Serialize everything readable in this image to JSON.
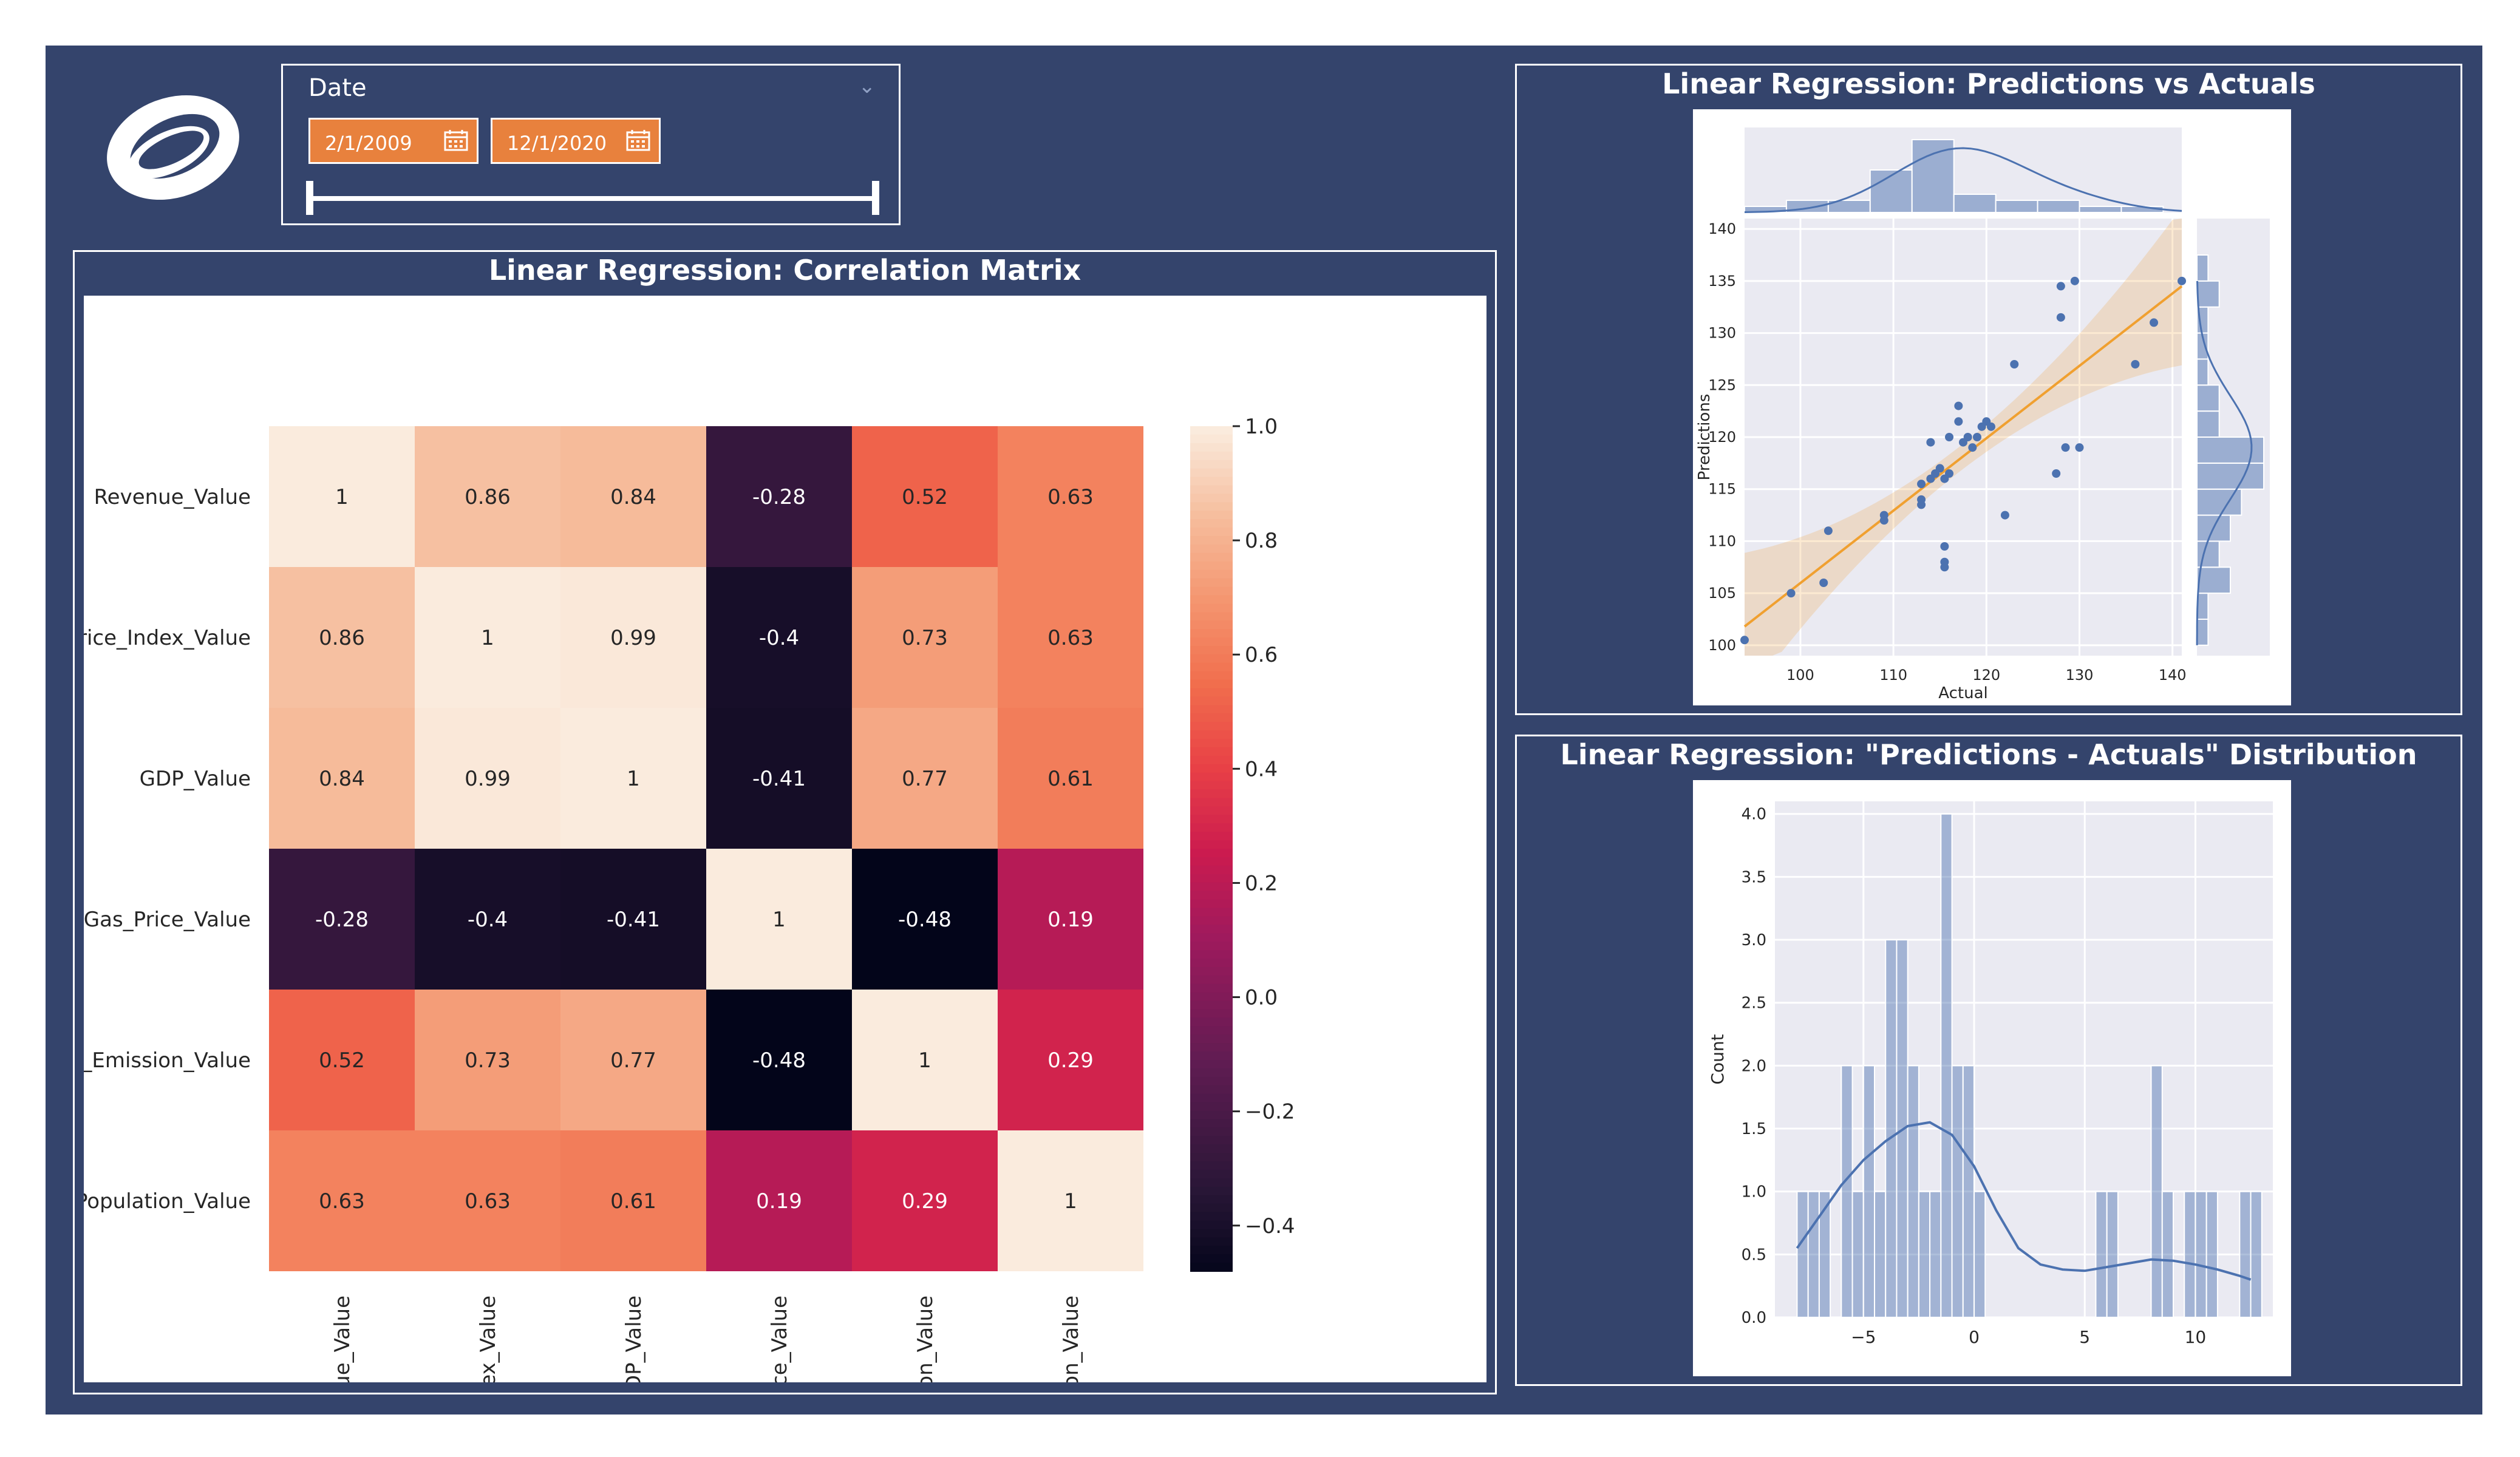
{
  "slicer": {
    "title": "Date",
    "start_date": "2/1/2009",
    "end_date": "12/1/2020"
  },
  "panels": {
    "correlation": {
      "title": "Linear Regression: Correlation Matrix"
    },
    "predictions": {
      "title": "Linear Regression: Predictions vs Actuals"
    },
    "distribution": {
      "title": "Linear Regression: \"Predictions - Actuals\" Distribution"
    }
  },
  "colors": {
    "background": "#34446c",
    "accent": "#e8813d",
    "seaborn_blue": "#4c72b0",
    "regression_line": "#f0a030",
    "seaborn_grid_bg": "#eaeaf2"
  },
  "chart_data": [
    {
      "type": "heatmap",
      "title": "",
      "row_labels": [
        "Revenue_Value",
        "rice_Index_Value",
        "GDP_Value",
        "Gas_Price_Value",
        "_Emission_Value",
        "Population_Value"
      ],
      "col_labels": [
        "nue_Value",
        "dex_Value",
        "GDP_Value",
        "rice_Value",
        "sion_Value",
        "ation_Value"
      ],
      "values": [
        [
          1,
          0.86,
          0.84,
          -0.28,
          0.52,
          0.63
        ],
        [
          0.86,
          1,
          0.99,
          -0.4,
          0.73,
          0.63
        ],
        [
          0.84,
          0.99,
          1,
          -0.41,
          0.77,
          0.61
        ],
        [
          -0.28,
          -0.4,
          -0.41,
          1,
          -0.48,
          0.19
        ],
        [
          0.52,
          0.73,
          0.77,
          -0.48,
          1,
          0.29
        ],
        [
          0.63,
          0.63,
          0.61,
          0.19,
          0.29,
          1
        ]
      ],
      "value_labels": [
        [
          "1",
          "0.86",
          "0.84",
          "-0.28",
          "0.52",
          "0.63"
        ],
        [
          "0.86",
          "1",
          "0.99",
          "-0.4",
          "0.73",
          "0.63"
        ],
        [
          "0.84",
          "0.99",
          "1",
          "-0.41",
          "0.77",
          "0.61"
        ],
        [
          "-0.28",
          "-0.4",
          "-0.41",
          "1",
          "-0.48",
          "0.19"
        ],
        [
          "0.52",
          "0.73",
          "0.77",
          "-0.48",
          "1",
          "0.29"
        ],
        [
          "0.63",
          "0.63",
          "0.61",
          "0.19",
          "0.29",
          "1"
        ]
      ],
      "colorbar": {
        "range": [
          -0.48,
          1.0
        ],
        "ticks": [
          1.0,
          0.8,
          0.6,
          0.4,
          0.2,
          0.0,
          -0.2,
          -0.4
        ],
        "tick_labels": [
          "1.0",
          "0.8",
          "0.6",
          "0.4",
          "0.2",
          "0.0",
          "−0.2",
          "−0.4"
        ]
      },
      "colormap": "rocket"
    },
    {
      "type": "scatter",
      "title": "",
      "xlabel": "Actual",
      "ylabel": "Predictions",
      "xlim": [
        94,
        141
      ],
      "ylim": [
        99,
        141
      ],
      "x_ticks": [
        100,
        110,
        120,
        130,
        140
      ],
      "y_ticks": [
        100,
        105,
        110,
        115,
        120,
        125,
        130,
        135,
        140
      ],
      "points": [
        [
          94,
          100.5
        ],
        [
          99,
          105
        ],
        [
          102.5,
          106
        ],
        [
          103,
          111
        ],
        [
          109,
          112
        ],
        [
          109,
          112.5
        ],
        [
          113,
          113.5
        ],
        [
          113,
          114
        ],
        [
          113,
          115.5
        ],
        [
          114,
          116
        ],
        [
          114,
          119.5
        ],
        [
          114.5,
          116.5
        ],
        [
          115,
          117
        ],
        [
          115.5,
          116
        ],
        [
          115.5,
          107.5
        ],
        [
          115.5,
          108
        ],
        [
          115.5,
          109.5
        ],
        [
          116,
          116.5
        ],
        [
          116,
          120
        ],
        [
          117,
          121.5
        ],
        [
          117,
          123
        ],
        [
          117.5,
          119.5
        ],
        [
          118,
          120
        ],
        [
          118.5,
          119
        ],
        [
          119,
          120
        ],
        [
          119.5,
          121
        ],
        [
          120,
          121.5
        ],
        [
          120.5,
          121
        ],
        [
          122,
          112.5
        ],
        [
          123,
          127
        ],
        [
          127.5,
          116.5
        ],
        [
          128,
          131.5
        ],
        [
          128,
          134.5
        ],
        [
          128.5,
          119
        ],
        [
          129.5,
          135
        ],
        [
          130,
          119
        ],
        [
          136,
          127
        ],
        [
          138,
          131
        ],
        [
          141,
          135
        ]
      ],
      "regression": {
        "x": [
          94,
          141
        ],
        "y": [
          101.8,
          134.5
        ]
      },
      "marginal_x_hist": {
        "bins_start": 94,
        "bin_width": 4.5,
        "counts": [
          1,
          2,
          2,
          7,
          12,
          3,
          2,
          2,
          1,
          1
        ]
      },
      "marginal_y_hist": {
        "bins_start": 100,
        "bin_width": 2.5,
        "counts": [
          1,
          1,
          3,
          2,
          3,
          4,
          6,
          6,
          2,
          2,
          1,
          1,
          1,
          2,
          1
        ]
      }
    },
    {
      "type": "bar",
      "title": "",
      "xlabel": "",
      "ylabel": "Count",
      "xlim": [
        -9,
        13.5
      ],
      "ylim": [
        0,
        4.1
      ],
      "x_ticks": [
        -5,
        0,
        5,
        10
      ],
      "x_tick_labels": [
        "−5",
        "0",
        "5",
        "10"
      ],
      "y_ticks": [
        0,
        0.5,
        1.0,
        1.5,
        2.0,
        2.5,
        3.0,
        3.5,
        4.0
      ],
      "y_tick_labels": [
        "0.0",
        "0.5",
        "1.0",
        "1.5",
        "2.0",
        "2.5",
        "3.0",
        "3.5",
        "4.0"
      ],
      "bin_width": 0.5,
      "bin_starts": [
        -8,
        -7.5,
        -7,
        -6,
        -5.5,
        -5,
        -4.5,
        -4,
        -3.5,
        -3,
        -2.5,
        -2,
        -1.5,
        -1,
        -0.5,
        0,
        5.5,
        6,
        8,
        8.5,
        9.5,
        10,
        10.5,
        12,
        12.5
      ],
      "counts": [
        1,
        1,
        1,
        2,
        1,
        2,
        1,
        3,
        3,
        2,
        1,
        1,
        4,
        2,
        2,
        1,
        1,
        1,
        2,
        1,
        1,
        1,
        1,
        1,
        1
      ],
      "kde": {
        "x": [
          -8,
          -7,
          -6,
          -5,
          -4,
          -3,
          -2,
          -1,
          0,
          1,
          2,
          3,
          4,
          5,
          6,
          7,
          8,
          9,
          10,
          11,
          12,
          12.5
        ],
        "y": [
          0.55,
          0.8,
          1.05,
          1.25,
          1.4,
          1.52,
          1.55,
          1.45,
          1.2,
          0.85,
          0.55,
          0.42,
          0.38,
          0.37,
          0.4,
          0.43,
          0.46,
          0.45,
          0.42,
          0.38,
          0.33,
          0.3
        ]
      }
    }
  ]
}
